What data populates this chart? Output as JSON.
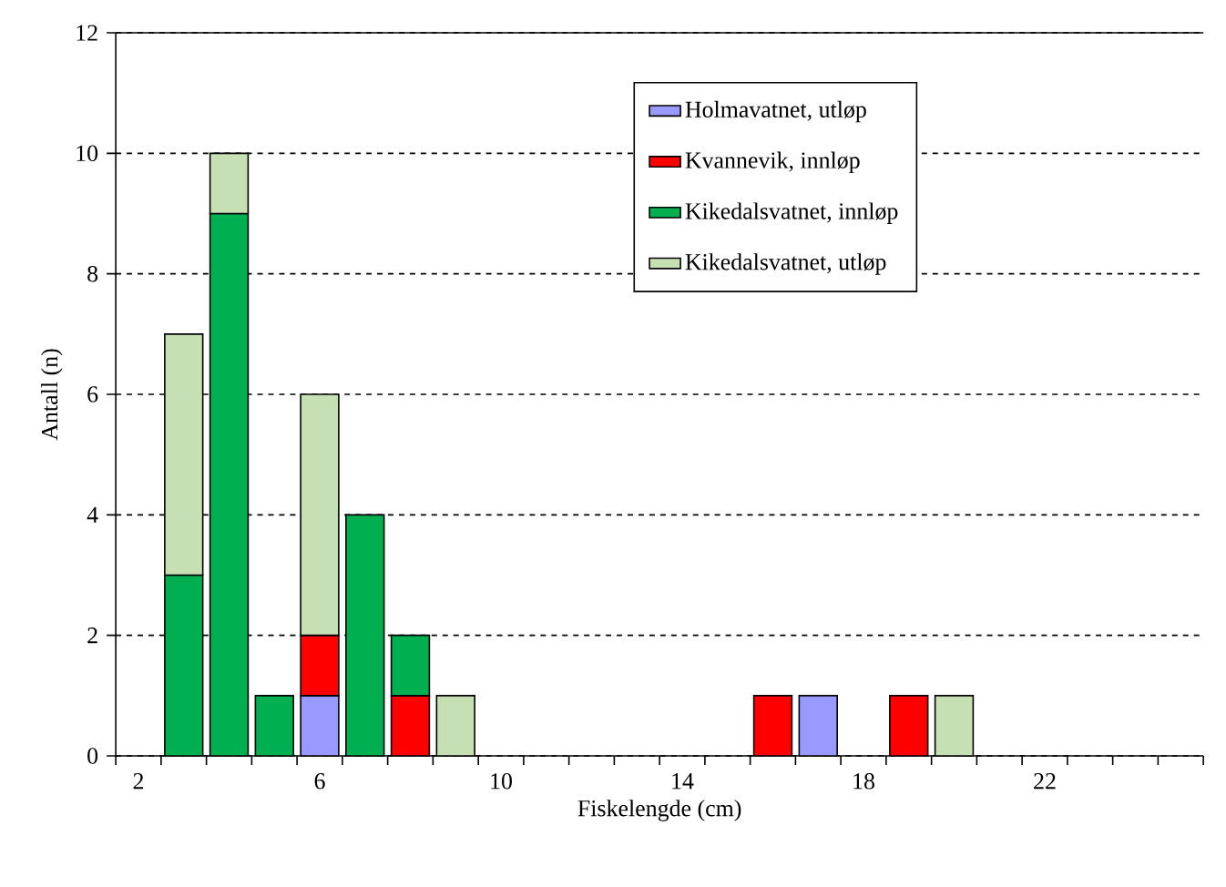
{
  "chart_data": {
    "type": "bar",
    "stacked": true,
    "xlabel": "Fiskelengde  (cm)",
    "ylabel": "Antall  (n)",
    "categories": [
      "2",
      null,
      null,
      null,
      "6",
      null,
      null,
      null,
      "10",
      null,
      null,
      null,
      "14",
      null,
      null,
      null,
      "18",
      null,
      null,
      null,
      "22",
      null,
      null,
      null
    ],
    "series": [
      {
        "name": "Holmavatnet, utløp",
        "color": "#9999ff",
        "values": [
          null,
          null,
          null,
          null,
          1,
          null,
          null,
          null,
          null,
          null,
          null,
          null,
          null,
          null,
          null,
          1,
          null,
          null,
          null,
          null,
          null,
          null,
          null,
          null
        ]
      },
      {
        "name": "Kvannevik, innløp",
        "color": "#ff0000",
        "values": [
          null,
          null,
          null,
          null,
          1,
          null,
          1,
          null,
          null,
          null,
          null,
          null,
          null,
          null,
          1,
          null,
          null,
          1,
          null,
          null,
          null,
          null,
          null,
          null
        ]
      },
      {
        "name": "Kikedalsvatnet, innløp",
        "color": "#00b050",
        "values": [
          null,
          3,
          9,
          1,
          null,
          4,
          1,
          null,
          null,
          null,
          null,
          null,
          null,
          null,
          null,
          null,
          null,
          null,
          null,
          null,
          null,
          null,
          null,
          null
        ]
      },
      {
        "name": "Kikedalsvatnet, utløp",
        "color": "#c6e0b4",
        "values": [
          null,
          4,
          1,
          null,
          4,
          null,
          null,
          1,
          null,
          null,
          null,
          null,
          null,
          null,
          null,
          null,
          null,
          null,
          1,
          null,
          null,
          null,
          null,
          null
        ]
      }
    ],
    "ylim": [
      0,
      12
    ],
    "yticks": [
      0,
      2,
      4,
      6,
      8,
      10,
      12
    ],
    "grid": "y",
    "legend": "top right"
  }
}
